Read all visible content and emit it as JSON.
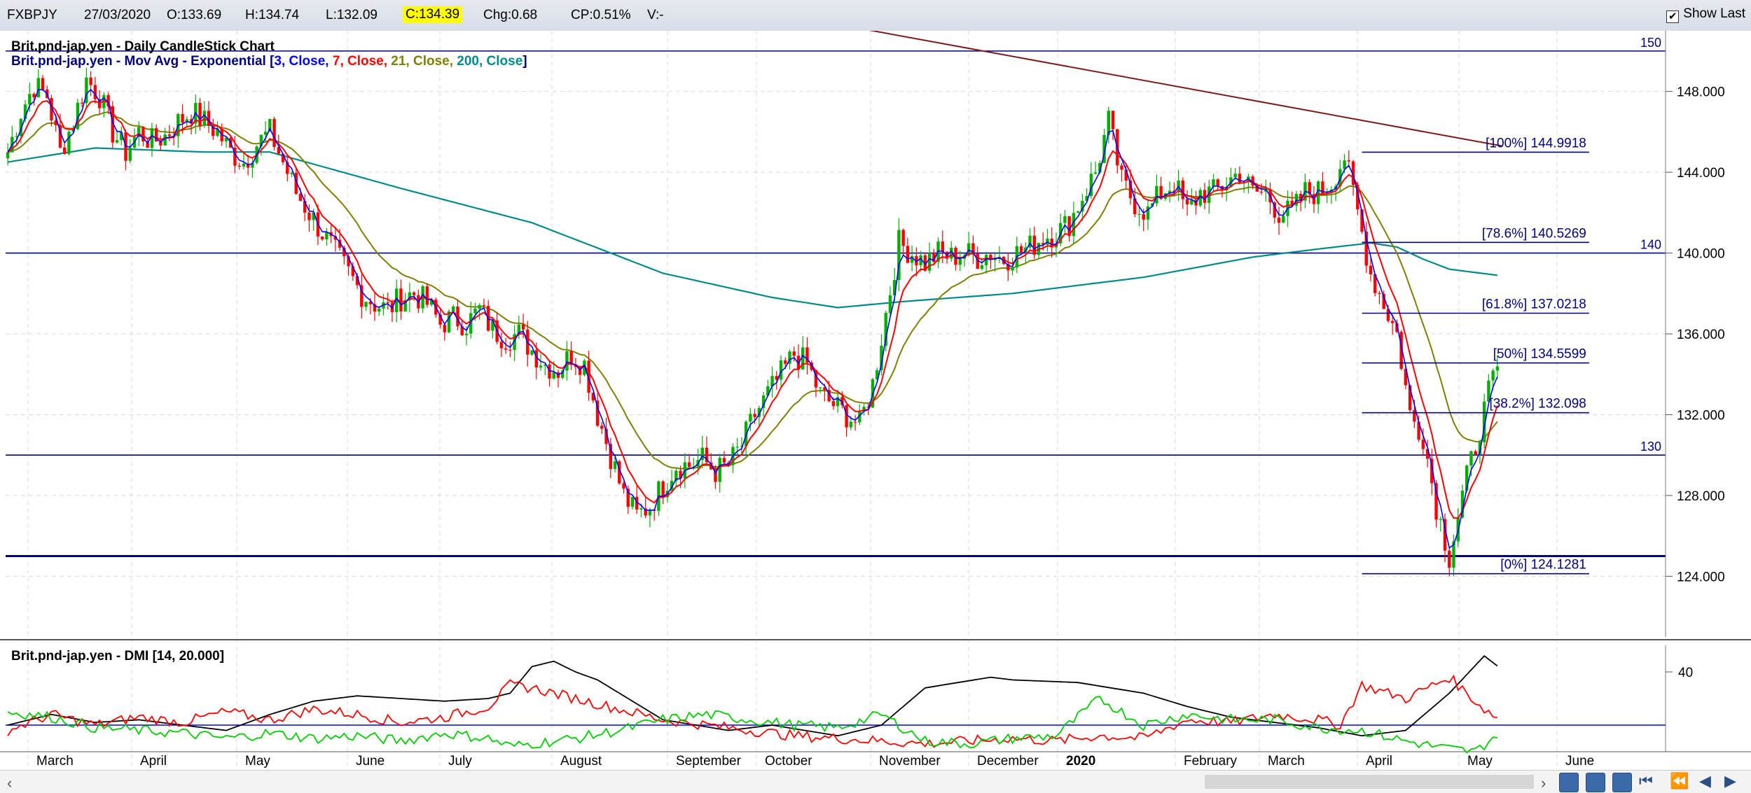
{
  "header": {
    "symbol": "FXBPJY",
    "date": "27/03/2020",
    "open": "O:133.69",
    "high": "H:134.74",
    "low": "L:132.09",
    "close": "C:134.39",
    "change": "Chg:0.68",
    "change_pct": "CP:0.51%",
    "volume": "V:-",
    "show_last_label": "Show Last",
    "show_last_checked": true
  },
  "chart_data": [
    {
      "type": "candlestick",
      "title": "Brit.pnd-jap.yen - Daily CandleStick Chart",
      "overlay": {
        "prefix": "Brit.pnd-jap.yen - Mov Avg - Exponential [",
        "items": [
          {
            "text": "3, Close,",
            "color": "#0000ff"
          },
          {
            "text": " 7, Close,",
            "color": "#ff0000"
          },
          {
            "text": " 21, Close,",
            "color": "#808000"
          },
          {
            "text": " 200, Close",
            "color": "#008b8b"
          }
        ],
        "suffix": "]"
      },
      "x_labels": [
        "March",
        "April",
        "May",
        "June",
        "July",
        "August",
        "September",
        "October",
        "November",
        "December",
        "2020",
        "February",
        "March",
        "April",
        "May",
        "June"
      ],
      "ylim": [
        121,
        151
      ],
      "y_ticks": [
        "124.000",
        "128.000",
        "132.000",
        "136.000",
        "140.000",
        "144.000",
        "148.000"
      ],
      "grid": true,
      "price_path": [
        [
          0,
          145
        ],
        [
          3,
          147
        ],
        [
          6,
          148.3
        ],
        [
          9,
          147.8
        ],
        [
          12,
          145
        ],
        [
          15,
          146.5
        ],
        [
          18,
          148.6
        ],
        [
          21,
          147.8
        ],
        [
          24,
          146
        ],
        [
          27,
          145
        ],
        [
          30,
          146
        ],
        [
          33,
          145.5
        ],
        [
          36,
          145.8
        ],
        [
          39,
          146.5
        ],
        [
          42,
          147
        ],
        [
          45,
          146.5
        ],
        [
          48,
          146
        ],
        [
          51,
          145
        ],
        [
          54,
          144.5
        ],
        [
          57,
          145.4
        ],
        [
          60,
          146
        ],
        [
          63,
          144.5
        ],
        [
          66,
          143
        ],
        [
          69,
          142
        ],
        [
          72,
          141
        ],
        [
          75,
          140
        ],
        [
          78,
          139
        ],
        [
          81,
          138
        ],
        [
          84,
          137.5
        ],
        [
          87,
          137.2
        ],
        [
          90,
          137.8
        ],
        [
          93,
          138
        ],
        [
          96,
          137.5
        ],
        [
          99,
          136.5
        ],
        [
          102,
          136.8
        ],
        [
          105,
          136.5
        ],
        [
          108,
          137.2
        ],
        [
          111,
          136.2
        ],
        [
          114,
          135.8
        ],
        [
          117,
          136
        ],
        [
          120,
          135.2
        ],
        [
          123,
          134.5
        ],
        [
          126,
          134.2
        ],
        [
          129,
          135
        ],
        [
          132,
          134.5
        ],
        [
          135,
          132
        ],
        [
          138,
          130
        ],
        [
          141,
          128
        ],
        [
          144,
          127
        ],
        [
          147,
          127.5
        ],
        [
          150,
          128.5
        ],
        [
          153,
          129.5
        ],
        [
          156,
          129.5
        ],
        [
          159,
          129.8
        ],
        [
          162,
          129.2
        ],
        [
          165,
          129.5
        ],
        [
          168,
          130.5
        ],
        [
          171,
          132
        ],
        [
          174,
          133
        ],
        [
          177,
          134
        ],
        [
          180,
          135
        ],
        [
          183,
          134.5
        ],
        [
          186,
          133
        ],
        [
          189,
          132.5
        ],
        [
          192,
          132
        ],
        [
          195,
          131.5
        ],
        [
          198,
          133.5
        ],
        [
          201,
          137
        ],
        [
          204,
          140.5
        ],
        [
          207,
          140
        ],
        [
          210,
          139.5
        ],
        [
          213,
          140
        ],
        [
          216,
          139.8
        ],
        [
          219,
          140
        ],
        [
          222,
          139.8
        ],
        [
          225,
          140
        ],
        [
          228,
          139.7
        ],
        [
          231,
          140
        ],
        [
          234,
          140.3
        ],
        [
          237,
          140.8
        ],
        [
          240,
          141
        ],
        [
          243,
          141.5
        ],
        [
          246,
          142.8
        ],
        [
          249,
          144
        ],
        [
          252,
          146.5
        ],
        [
          255,
          143.5
        ],
        [
          258,
          142.5
        ],
        [
          261,
          142
        ],
        [
          264,
          143
        ],
        [
          267,
          143.5
        ],
        [
          270,
          142
        ],
        [
          273,
          143
        ],
        [
          276,
          143
        ],
        [
          279,
          143.5
        ],
        [
          282,
          144
        ],
        [
          285,
          143
        ],
        [
          288,
          143
        ],
        [
          291,
          142
        ],
        [
          294,
          142
        ],
        [
          297,
          143
        ],
        [
          300,
          143
        ],
        [
          303,
          143.5
        ],
        [
          306,
          144.8
        ],
        [
          309,
          142
        ],
        [
          312,
          139
        ],
        [
          315,
          137.5
        ],
        [
          318,
          136
        ],
        [
          321,
          132
        ],
        [
          324,
          131
        ],
        [
          327,
          127.5
        ],
        [
          330,
          125
        ],
        [
          333,
          128
        ],
        [
          336,
          130.5
        ],
        [
          339,
          133
        ],
        [
          341,
          134.39
        ]
      ],
      "ema_200": [
        [
          0,
          144.5
        ],
        [
          20,
          145.2
        ],
        [
          45,
          145
        ],
        [
          60,
          145
        ],
        [
          90,
          143.2
        ],
        [
          120,
          141.5
        ],
        [
          150,
          139
        ],
        [
          175,
          137.8
        ],
        [
          190,
          137.3
        ],
        [
          205,
          137.6
        ],
        [
          230,
          138
        ],
        [
          260,
          138.8
        ],
        [
          285,
          139.8
        ],
        [
          300,
          140.2
        ],
        [
          312,
          140.5
        ],
        [
          318,
          140.3
        ],
        [
          324,
          139.7
        ],
        [
          330,
          139.2
        ],
        [
          341,
          138.9
        ]
      ],
      "fibonacci": {
        "x_start": 310,
        "x_end": 362,
        "levels": [
          {
            "label": "[100%] 144.9918",
            "value": 144.9918
          },
          {
            "label": "[78.6%] 140.5269",
            "value": 140.5269
          },
          {
            "label": "[61.8%] 137.0218",
            "value": 137.0218
          },
          {
            "label": "[50%] 134.5599",
            "value": 134.5599
          },
          {
            "label": "[38.2%] 132.098",
            "value": 132.098
          },
          {
            "label": "[0%] 124.1281",
            "value": 124.1281
          }
        ]
      },
      "horizontal_lines": [
        {
          "value": 150,
          "label": "150"
        },
        {
          "value": 140,
          "label": "140"
        },
        {
          "value": 130,
          "label": "130"
        },
        {
          "value": 125,
          "label": ""
        }
      ],
      "trendline": {
        "start": [
          193,
          151.2
        ],
        "end": [
          342,
          145.3
        ]
      }
    },
    {
      "type": "line",
      "title": "Brit.pnd-jap.yen - DMI [14, 20.000]",
      "ylim": [
        10,
        50
      ],
      "y_ticks": [
        "40"
      ],
      "reference_line": 20,
      "series": [
        {
          "color": "#000000",
          "values": [
            [
              0,
              20
            ],
            [
              10,
              24
            ],
            [
              20,
              21
            ],
            [
              30,
              22
            ],
            [
              40,
              20
            ],
            [
              50,
              18
            ],
            [
              60,
              24
            ],
            [
              70,
              29
            ],
            [
              80,
              31
            ],
            [
              90,
              30
            ],
            [
              100,
              29
            ],
            [
              110,
              30
            ],
            [
              115,
              32
            ],
            [
              120,
              42
            ],
            [
              125,
              44
            ],
            [
              130,
              40
            ],
            [
              135,
              37
            ],
            [
              140,
              32
            ],
            [
              150,
              22
            ],
            [
              165,
              18
            ],
            [
              175,
              20
            ],
            [
              190,
              16
            ],
            [
              200,
              20
            ],
            [
              210,
              34
            ],
            [
              225,
              38
            ],
            [
              230,
              37
            ],
            [
              245,
              36
            ],
            [
              260,
              32
            ],
            [
              270,
              27
            ],
            [
              280,
              23
            ],
            [
              300,
              19
            ],
            [
              310,
              16
            ],
            [
              320,
              18
            ],
            [
              330,
              32
            ],
            [
              338,
              46
            ],
            [
              342,
              41
            ]
          ]
        },
        {
          "color": "#ff0000",
          "values": [
            [
              0,
              18
            ],
            [
              10,
              24
            ],
            [
              20,
              20
            ],
            [
              30,
              23
            ],
            [
              40,
              21
            ],
            [
              50,
              25
            ],
            [
              60,
              22
            ],
            [
              70,
              26
            ],
            [
              80,
              24
            ],
            [
              90,
              21
            ],
            [
              100,
              23
            ],
            [
              110,
              27
            ],
            [
              115,
              35
            ],
            [
              120,
              34
            ],
            [
              130,
              30
            ],
            [
              140,
              26
            ],
            [
              150,
              22
            ],
            [
              160,
              20
            ],
            [
              170,
              18
            ],
            [
              180,
              16
            ],
            [
              190,
              15
            ],
            [
              200,
              14
            ],
            [
              210,
              13
            ],
            [
              220,
              14
            ],
            [
              230,
              15
            ],
            [
              240,
              14
            ],
            [
              250,
              16
            ],
            [
              260,
              15
            ],
            [
              270,
              22
            ],
            [
              280,
              21
            ],
            [
              290,
              24
            ],
            [
              300,
              22
            ],
            [
              305,
              20
            ],
            [
              310,
              35
            ],
            [
              320,
              30
            ],
            [
              330,
              38
            ],
            [
              338,
              26
            ],
            [
              342,
              22
            ]
          ]
        },
        {
          "color": "#00cc00",
          "values": [
            [
              0,
              25
            ],
            [
              10,
              23
            ],
            [
              20,
              19
            ],
            [
              30,
              18
            ],
            [
              40,
              17
            ],
            [
              50,
              15
            ],
            [
              60,
              17
            ],
            [
              70,
              15
            ],
            [
              80,
              16
            ],
            [
              90,
              14
            ],
            [
              100,
              17
            ],
            [
              110,
              15
            ],
            [
              115,
              12
            ],
            [
              120,
              13
            ],
            [
              130,
              15
            ],
            [
              140,
              18
            ],
            [
              150,
              22
            ],
            [
              160,
              24
            ],
            [
              170,
              22
            ],
            [
              180,
              20
            ],
            [
              190,
              19
            ],
            [
              200,
              24
            ],
            [
              210,
              14
            ],
            [
              220,
              13
            ],
            [
              230,
              15
            ],
            [
              240,
              16
            ],
            [
              250,
              30
            ],
            [
              260,
              20
            ],
            [
              270,
              24
            ],
            [
              280,
              22
            ],
            [
              290,
              22
            ],
            [
              300,
              19
            ],
            [
              310,
              18
            ],
            [
              320,
              14
            ],
            [
              330,
              11
            ],
            [
              336,
              10
            ],
            [
              342,
              18
            ]
          ]
        }
      ]
    }
  ]
}
